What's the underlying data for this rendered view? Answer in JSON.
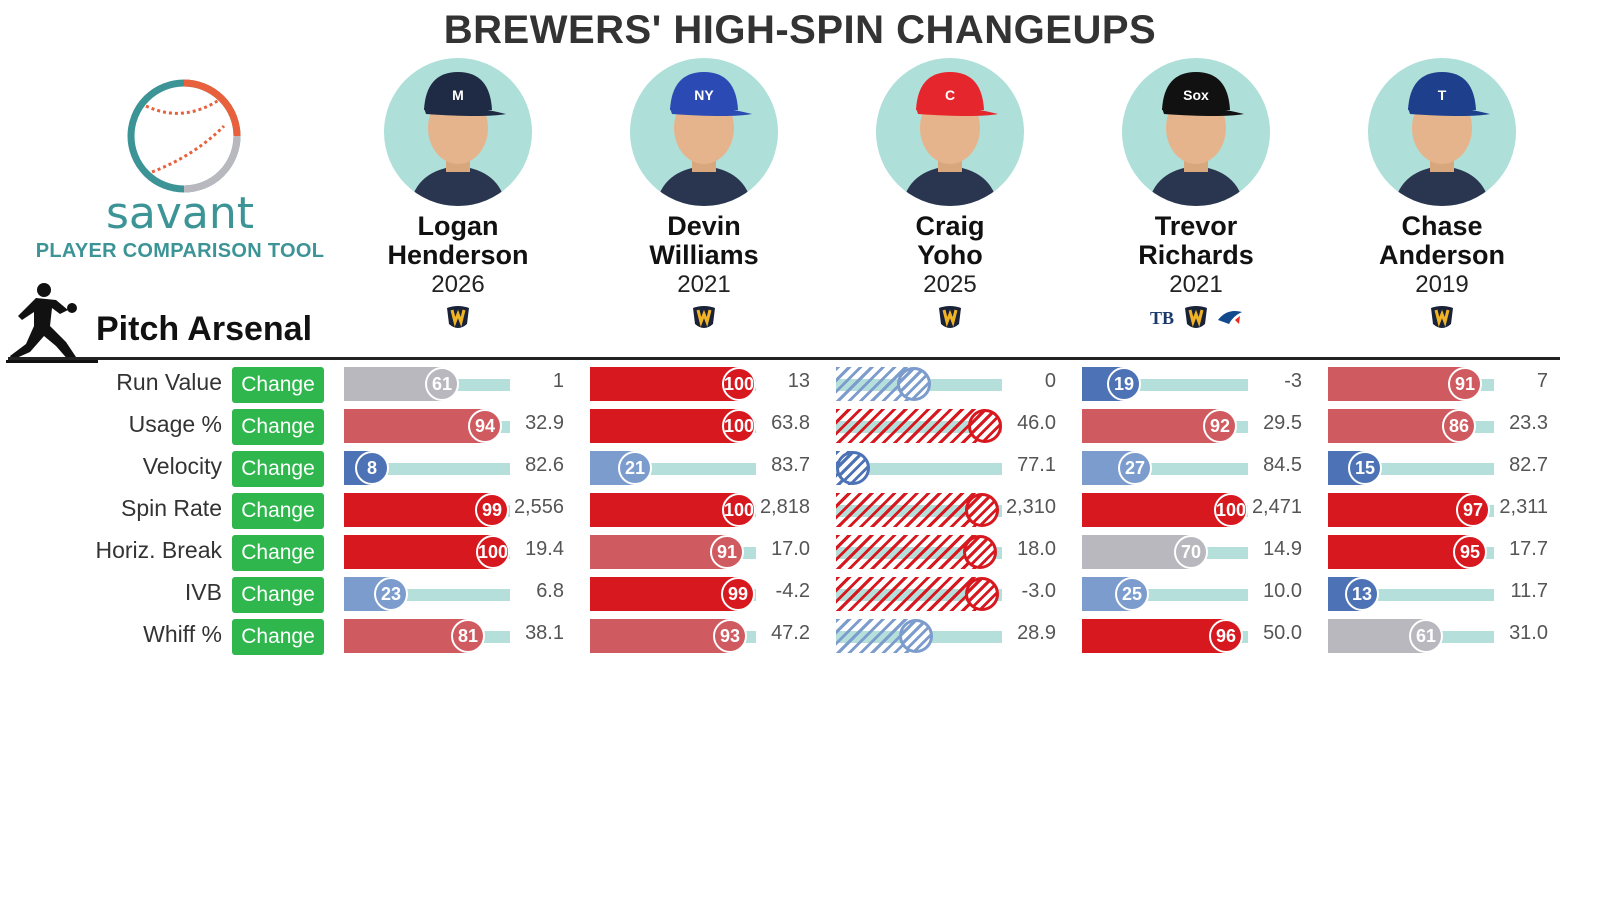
{
  "title": "BREWERS' HIGH-SPIN CHANGEUPS",
  "logo": {
    "name": "savant",
    "subtitle": "PLAYER COMPARISON TOOL"
  },
  "section": {
    "title": "Pitch Arsenal",
    "icon": "pitcher-silhouette-icon"
  },
  "colors": {
    "high": "#d7191f",
    "mid_high": "#cf5a60",
    "neutral": "#b8b8be",
    "low": "#4d73b6",
    "mid_low": "#7b9ccc",
    "track": "#b5dfdb",
    "button": "#2fb74e",
    "avatar_bg": "#aedfd9",
    "brand": "#3c9496"
  },
  "metrics": [
    {
      "label": "Run Value",
      "button": "Change"
    },
    {
      "label": "Usage %",
      "button": "Change"
    },
    {
      "label": "Velocity",
      "button": "Change"
    },
    {
      "label": "Spin Rate",
      "button": "Change"
    },
    {
      "label": "Horiz. Break",
      "button": "Change"
    },
    {
      "label": "IVB",
      "button": "Change"
    },
    {
      "label": "Whiff %",
      "button": "Change"
    }
  ],
  "players": [
    {
      "first": "Logan",
      "last": "Henderson",
      "year": "2026",
      "cap_color": "#1f2a44",
      "cap_logo": "M",
      "teams": [
        "brewers-logo-icon"
      ],
      "percentiles": [
        61,
        94,
        8,
        99,
        100,
        23,
        81
      ],
      "values": [
        "1",
        "32.9",
        "82.6",
        "2,556",
        "19.4",
        "6.8",
        "38.1"
      ],
      "hatched": false
    },
    {
      "first": "Devin",
      "last": "Williams",
      "year": "2021",
      "cap_color": "#2b4ab3",
      "cap_logo": "NY",
      "teams": [
        "brewers-logo-icon"
      ],
      "percentiles": [
        100,
        100,
        21,
        100,
        91,
        99,
        93
      ],
      "values": [
        "13",
        "63.8",
        "83.7",
        "2,818",
        "17.0",
        "-4.2",
        "47.2"
      ],
      "hatched": false
    },
    {
      "first": "Craig",
      "last": "Yoho",
      "year": "2025",
      "cap_color": "#e5262d",
      "cap_logo": "C",
      "teams": [
        "brewers-logo-icon"
      ],
      "percentiles": [
        46,
        100,
        0,
        98,
        96,
        98,
        48
      ],
      "values": [
        "0",
        "46.0",
        "77.1",
        "2,310",
        "18.0",
        "-3.0",
        "28.9"
      ],
      "hatched": true
    },
    {
      "first": "Trevor",
      "last": "Richards",
      "year": "2021",
      "cap_color": "#111111",
      "cap_logo": "Sox",
      "teams": [
        "rays-logo-icon",
        "brewers-logo-icon",
        "blue-jays-logo-icon"
      ],
      "percentiles": [
        19,
        92,
        27,
        100,
        70,
        25,
        96
      ],
      "values": [
        "-3",
        "29.5",
        "84.5",
        "2,471",
        "14.9",
        "10.0",
        "50.0"
      ],
      "hatched": false
    },
    {
      "first": "Chase",
      "last": "Anderson",
      "year": "2019",
      "cap_color": "#1d3f8c",
      "cap_logo": "T",
      "teams": [
        "brewers-logo-icon"
      ],
      "percentiles": [
        91,
        86,
        15,
        97,
        95,
        13,
        61
      ],
      "values": [
        "7",
        "23.3",
        "82.7",
        "2,311",
        "17.7",
        "11.7",
        "31.0"
      ],
      "hatched": false
    }
  ]
}
